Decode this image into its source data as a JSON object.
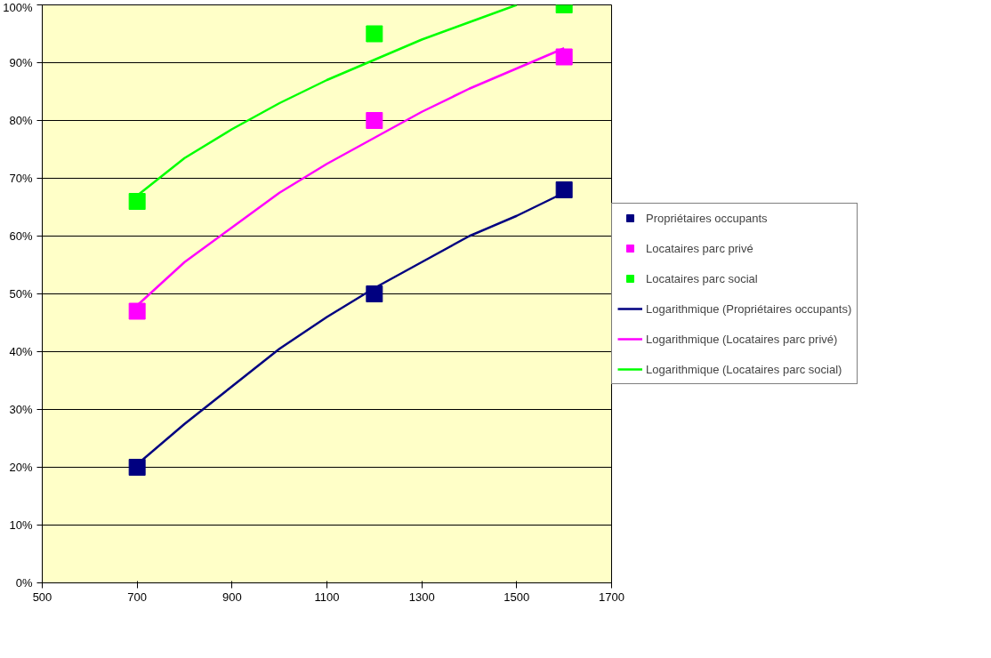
{
  "chart_data": {
    "type": "scatter",
    "x": [
      700,
      1200,
      1600
    ],
    "series": [
      {
        "name": "Propriétaires occupants",
        "color": "#000080",
        "values": [
          20,
          50,
          68
        ]
      },
      {
        "name": "Locataires parc privé",
        "color": "#ff00ff",
        "values": [
          47,
          80,
          91
        ]
      },
      {
        "name": "Locataires parc social",
        "color": "#00ff00",
        "values": [
          66,
          95,
          100
        ]
      },
      {
        "name": "Logarithmique (Propriétaires occupants)",
        "type": "line",
        "marker": "none",
        "color": "#000080",
        "x": [
          700,
          800,
          900,
          1000,
          1100,
          1200,
          1300,
          1400,
          1500,
          1600
        ],
        "values": [
          20.5,
          27.5,
          34,
          40.5,
          46,
          51,
          55.5,
          60,
          63.5,
          67.5
        ]
      },
      {
        "name": "Logarithmique (Locataires parc privé)",
        "type": "line",
        "marker": "none",
        "color": "#ff00ff",
        "x": [
          700,
          800,
          900,
          1000,
          1100,
          1200,
          1300,
          1400,
          1500,
          1600
        ],
        "values": [
          48,
          55.5,
          61.5,
          67.5,
          72.5,
          77,
          81.5,
          85.5,
          89,
          92.5
        ]
      },
      {
        "name": "Logarithmique (Locataires parc social)",
        "type": "line",
        "marker": "none",
        "color": "#00ff00",
        "x": [
          700,
          800,
          900,
          1000,
          1100,
          1200,
          1300,
          1400,
          1500
        ],
        "values": [
          67,
          73.5,
          78.5,
          83,
          87,
          90.5,
          94,
          97,
          100
        ]
      }
    ],
    "marker": "square",
    "line_style": "solid",
    "xlim": [
      500,
      1700
    ],
    "xticks": [
      500,
      700,
      900,
      1100,
      1300,
      1500,
      1700
    ],
    "ylim": [
      0,
      100
    ],
    "yticks": [
      {
        "value": 0,
        "label": "0%"
      },
      {
        "value": 10,
        "label": "10%"
      },
      {
        "value": 20,
        "label": "20%"
      },
      {
        "value": 30,
        "label": "30%"
      },
      {
        "value": 40,
        "label": "40%"
      },
      {
        "value": 50,
        "label": "50%"
      },
      {
        "value": 60,
        "label": "60%"
      },
      {
        "value": 70,
        "label": "70%"
      },
      {
        "value": 80,
        "label": "80%"
      },
      {
        "value": 90,
        "label": "90%"
      },
      {
        "value": 100,
        "label": "100%"
      }
    ],
    "grid": "y",
    "legend": "right"
  }
}
